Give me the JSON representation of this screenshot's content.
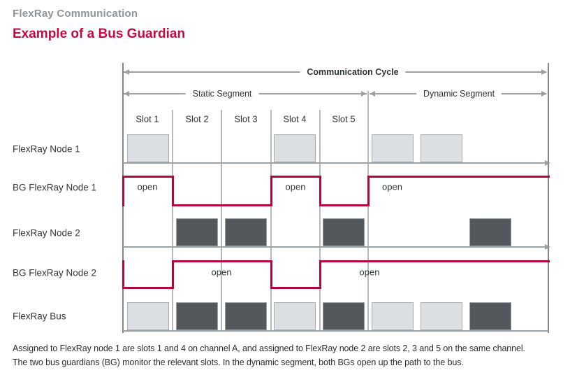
{
  "page": {
    "title": "FlexRay Communication",
    "subtitle": "Example of a Bus Guardian"
  },
  "diagram": {
    "cycle_label": "Communication Cycle",
    "static_label": "Static Segment",
    "dynamic_label": "Dynamic Segment",
    "slot_labels": [
      "Slot 1",
      "Slot 2",
      "Slot 3",
      "Slot 4",
      "Slot 5"
    ],
    "open_label": "open",
    "rows": [
      {
        "id": "node1",
        "label": "FlexRay Node 1",
        "type": "node",
        "shade": "light",
        "occupied": [
          "s1",
          "s4",
          "d1",
          "d2"
        ]
      },
      {
        "id": "bg1",
        "label": "BG FlexRay Node 1",
        "type": "guardian",
        "open_intervals": [
          [
            0,
            1
          ],
          [
            3,
            4
          ],
          [
            5,
            "end"
          ]
        ],
        "open_labels": [
          "open",
          "open",
          "open"
        ]
      },
      {
        "id": "node2",
        "label": "FlexRay Node 2",
        "type": "node",
        "shade": "dark",
        "occupied": [
          "s2",
          "s3",
          "s5",
          "d3"
        ]
      },
      {
        "id": "bg2",
        "label": "BG FlexRay Node 2",
        "type": "guardian",
        "open_intervals": [
          [
            1,
            3
          ],
          [
            4,
            "end"
          ]
        ],
        "open_labels": [
          "open",
          "open"
        ]
      },
      {
        "id": "bus",
        "label": "FlexRay Bus",
        "type": "bus",
        "occupied": [
          [
            "s1",
            "light"
          ],
          [
            "s2",
            "dark"
          ],
          [
            "s3",
            "dark"
          ],
          [
            "s4",
            "light"
          ],
          [
            "s5",
            "dark"
          ],
          [
            "d1",
            "light"
          ],
          [
            "d2",
            "light"
          ],
          [
            "d3",
            "dark"
          ]
        ]
      }
    ]
  },
  "caption": {
    "line1": "Assigned to FlexRay node 1 are slots 1 and 4 on channel A, and assigned to FlexRay node 2 are slots 2, 3 and 5 on the same channel.",
    "line2": "The two bus guardians (BG) monitor the relevant slots. In the dynamic segment, both BGs open up the path to the bus."
  },
  "colors": {
    "title_crimson": "#c20a45",
    "guardian_crimson": "#b2073a",
    "light_block_fill": "#dbdfe1",
    "dark_block_fill": "#53585c",
    "grid_gray": "#b5babd",
    "heading_gray": "#8f9498"
  }
}
